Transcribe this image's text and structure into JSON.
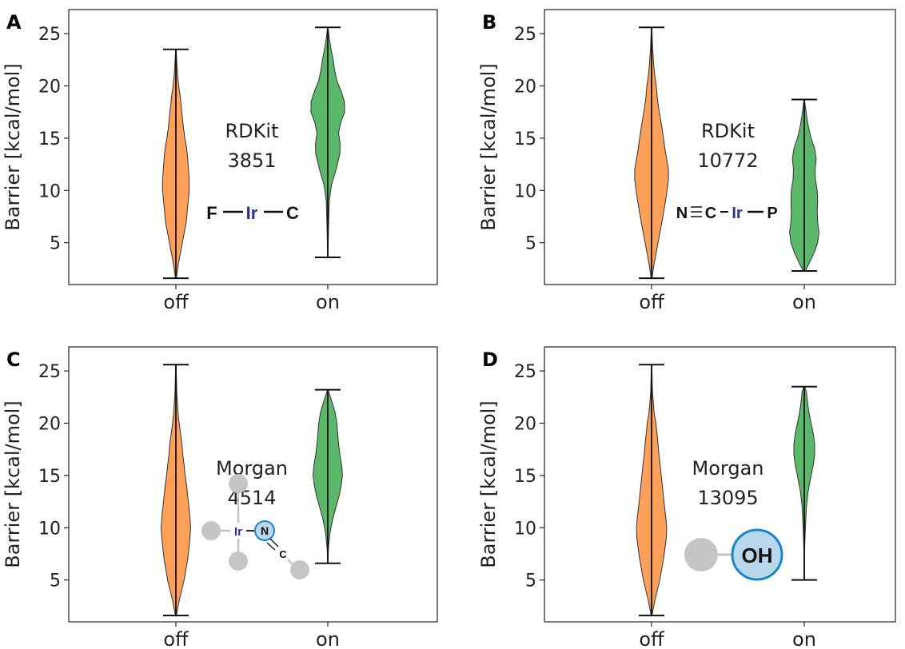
{
  "colors": {
    "off": "#fca05a",
    "on": "#5bb86a",
    "atom_ir": "#2b2f8f",
    "node_gray": "#c3c5c9",
    "node_blue_fill": "#b9d8ee",
    "node_blue_stroke": "#1a86c8"
  },
  "chart_data": [
    {
      "type": "violin",
      "panel": "A",
      "ylabel": "Barrier [kcal/mol]",
      "categories": [
        "off",
        "on"
      ],
      "ylim": [
        1,
        27.3
      ],
      "yticks": [
        5,
        10,
        15,
        20,
        25
      ],
      "annotation": [
        "RDKit",
        "3851"
      ],
      "structure": [
        "F",
        "Ir",
        "C"
      ],
      "series": [
        {
          "category": "off",
          "color": "#fca05a",
          "min": 1.6,
          "max": 23.5,
          "profile": [
            [
              1.6,
              0.02
            ],
            [
              3,
              0.12
            ],
            [
              5,
              0.3
            ],
            [
              7,
              0.48
            ],
            [
              8.5,
              0.55
            ],
            [
              10,
              0.62
            ],
            [
              11,
              0.62
            ],
            [
              12,
              0.58
            ],
            [
              13,
              0.55
            ],
            [
              14,
              0.5
            ],
            [
              15,
              0.42
            ],
            [
              16,
              0.35
            ],
            [
              17,
              0.3
            ],
            [
              18,
              0.25
            ],
            [
              19,
              0.2
            ],
            [
              20,
              0.13
            ],
            [
              21,
              0.08
            ],
            [
              22,
              0.05
            ],
            [
              23.5,
              0.01
            ]
          ]
        },
        {
          "category": "on",
          "color": "#5bb86a",
          "min": 3.6,
          "max": 25.6,
          "profile": [
            [
              3.6,
              0.01
            ],
            [
              6,
              0.03
            ],
            [
              9,
              0.07
            ],
            [
              10.5,
              0.17
            ],
            [
              12,
              0.38
            ],
            [
              13.5,
              0.56
            ],
            [
              14.5,
              0.57
            ],
            [
              15.5,
              0.5
            ],
            [
              16.5,
              0.6
            ],
            [
              17.5,
              0.78
            ],
            [
              18.5,
              0.77
            ],
            [
              19.5,
              0.62
            ],
            [
              20.5,
              0.42
            ],
            [
              21.5,
              0.32
            ],
            [
              22.5,
              0.25
            ],
            [
              23.5,
              0.15
            ],
            [
              24.5,
              0.07
            ],
            [
              25.6,
              0.01
            ]
          ]
        }
      ]
    },
    {
      "type": "violin",
      "panel": "B",
      "ylabel": "Barrier [kcal/mol]",
      "categories": [
        "off",
        "on"
      ],
      "ylim": [
        1,
        27.3
      ],
      "yticks": [
        5,
        10,
        15,
        20,
        25
      ],
      "annotation": [
        "RDKit",
        "10772"
      ],
      "structure": [
        "N",
        "C",
        "Ir",
        "P"
      ],
      "series": [
        {
          "category": "off",
          "color": "#fca05a",
          "min": 1.6,
          "max": 25.6,
          "profile": [
            [
              1.6,
              0.02
            ],
            [
              3,
              0.12
            ],
            [
              5,
              0.3
            ],
            [
              7,
              0.48
            ],
            [
              9,
              0.65
            ],
            [
              11,
              0.78
            ],
            [
              12,
              0.78
            ],
            [
              13,
              0.7
            ],
            [
              14,
              0.62
            ],
            [
              15,
              0.55
            ],
            [
              16,
              0.48
            ],
            [
              17,
              0.4
            ],
            [
              18,
              0.32
            ],
            [
              19,
              0.26
            ],
            [
              20,
              0.22
            ],
            [
              21,
              0.15
            ],
            [
              22,
              0.1
            ],
            [
              24,
              0.04
            ],
            [
              25.6,
              0.01
            ]
          ]
        },
        {
          "category": "on",
          "color": "#5bb86a",
          "min": 2.3,
          "max": 18.7,
          "profile": [
            [
              2.3,
              0.05
            ],
            [
              3,
              0.22
            ],
            [
              4,
              0.45
            ],
            [
              5,
              0.62
            ],
            [
              6,
              0.68
            ],
            [
              7,
              0.62
            ],
            [
              8,
              0.6
            ],
            [
              9,
              0.62
            ],
            [
              10,
              0.6
            ],
            [
              11,
              0.52
            ],
            [
              12,
              0.5
            ],
            [
              13,
              0.55
            ],
            [
              14,
              0.48
            ],
            [
              15,
              0.32
            ],
            [
              16,
              0.2
            ],
            [
              17,
              0.12
            ],
            [
              18,
              0.05
            ],
            [
              18.7,
              0.01
            ]
          ]
        }
      ]
    },
    {
      "type": "violin",
      "panel": "C",
      "ylabel": "Barrier [kcal/mol]",
      "categories": [
        "off",
        "on"
      ],
      "ylim": [
        1,
        27.3
      ],
      "yticks": [
        5,
        10,
        15,
        20,
        25
      ],
      "annotation": [
        "Morgan",
        "4514"
      ],
      "structure": [
        "Ir",
        "N",
        "C"
      ],
      "series": [
        {
          "category": "off",
          "color": "#fca05a",
          "min": 1.6,
          "max": 25.6,
          "profile": [
            [
              1.6,
              0.02
            ],
            [
              3,
              0.15
            ],
            [
              5,
              0.38
            ],
            [
              7,
              0.55
            ],
            [
              9,
              0.65
            ],
            [
              10,
              0.68
            ],
            [
              11,
              0.65
            ],
            [
              12,
              0.6
            ],
            [
              13,
              0.55
            ],
            [
              14,
              0.5
            ],
            [
              15,
              0.43
            ],
            [
              16,
              0.38
            ],
            [
              17,
              0.32
            ],
            [
              18,
              0.28
            ],
            [
              19,
              0.22
            ],
            [
              20,
              0.15
            ],
            [
              21,
              0.1
            ],
            [
              23,
              0.04
            ],
            [
              25.6,
              0.01
            ]
          ]
        },
        {
          "category": "on",
          "color": "#5bb86a",
          "min": 6.6,
          "max": 23.2,
          "profile": [
            [
              6.6,
              0.01
            ],
            [
              8,
              0.03
            ],
            [
              9.5,
              0.1
            ],
            [
              11,
              0.25
            ],
            [
              12,
              0.38
            ],
            [
              13,
              0.52
            ],
            [
              14,
              0.62
            ],
            [
              15,
              0.68
            ],
            [
              16,
              0.64
            ],
            [
              17,
              0.56
            ],
            [
              18,
              0.5
            ],
            [
              19,
              0.46
            ],
            [
              20,
              0.42
            ],
            [
              21,
              0.34
            ],
            [
              22,
              0.2
            ],
            [
              23.2,
              0.01
            ]
          ]
        }
      ]
    },
    {
      "type": "violin",
      "panel": "D",
      "ylabel": "Barrier [kcal/mol]",
      "categories": [
        "off",
        "on"
      ],
      "ylim": [
        1,
        27.3
      ],
      "yticks": [
        5,
        10,
        15,
        20,
        25
      ],
      "annotation": [
        "Morgan",
        "13095"
      ],
      "structure": [
        "OH"
      ],
      "series": [
        {
          "category": "off",
          "color": "#fca05a",
          "min": 1.6,
          "max": 25.6,
          "profile": [
            [
              1.6,
              0.02
            ],
            [
              3,
              0.15
            ],
            [
              5,
              0.38
            ],
            [
              7,
              0.55
            ],
            [
              9,
              0.68
            ],
            [
              10,
              0.7
            ],
            [
              11,
              0.66
            ],
            [
              12,
              0.6
            ],
            [
              13,
              0.55
            ],
            [
              14,
              0.5
            ],
            [
              15,
              0.45
            ],
            [
              16,
              0.4
            ],
            [
              17,
              0.34
            ],
            [
              18,
              0.3
            ],
            [
              19,
              0.25
            ],
            [
              20,
              0.2
            ],
            [
              21,
              0.12
            ],
            [
              23,
              0.04
            ],
            [
              25.6,
              0.01
            ]
          ]
        },
        {
          "category": "on",
          "color": "#5bb86a",
          "min": 5.0,
          "max": 23.5,
          "profile": [
            [
              5,
              0.01
            ],
            [
              8,
              0.02
            ],
            [
              10,
              0.05
            ],
            [
              12,
              0.1
            ],
            [
              13.5,
              0.18
            ],
            [
              15,
              0.32
            ],
            [
              16,
              0.42
            ],
            [
              17,
              0.48
            ],
            [
              18,
              0.48
            ],
            [
              19,
              0.42
            ],
            [
              20,
              0.32
            ],
            [
              21,
              0.22
            ],
            [
              22,
              0.15
            ],
            [
              23,
              0.1
            ],
            [
              23.5,
              0.02
            ]
          ]
        }
      ]
    }
  ]
}
